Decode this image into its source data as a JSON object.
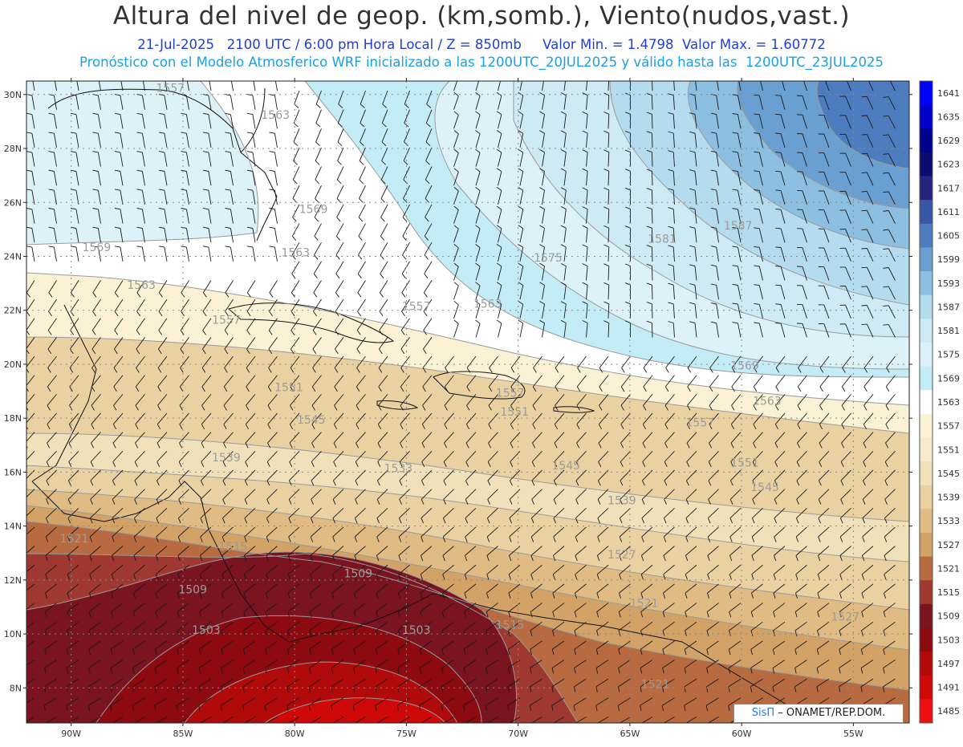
{
  "header": {
    "title": "Altura del nivel de geop. (km,somb.), Viento(nudos,vast.)",
    "line1_date": "21-Jul-2025",
    "line1_time": "2100 UTC / 6:00 pm Hora Local / Z = 850mb",
    "line1_min": "Valor Min. = 1.4798",
    "line1_max": "Valor Max. = 1.60772",
    "line2": "Pronóstico con el Modelo Atmosferico WRF inicializado a las 1200UTC_20JUL2025 y válido hasta las  1200UTC_23JUL2025"
  },
  "map": {
    "lat_labels": [
      "30N",
      "28N",
      "26N",
      "24N",
      "22N",
      "20N",
      "18N",
      "16N",
      "14N",
      "12N",
      "10N",
      "8N"
    ],
    "lat_values": [
      30,
      28,
      26,
      24,
      22,
      20,
      18,
      16,
      14,
      12,
      10,
      8
    ],
    "lon_labels": [
      "90W",
      "85W",
      "80W",
      "75W",
      "70W",
      "65W",
      "60W",
      "55W"
    ],
    "lon_values": [
      -90,
      -85,
      -80,
      -75,
      -70,
      -65,
      -60,
      -55
    ],
    "lon_range": [
      -92,
      -52.5
    ],
    "lat_range": [
      6.7,
      30.5
    ],
    "contour_labels": [
      {
        "text": "1557",
        "lon": -86.2,
        "lat": 30.1
      },
      {
        "text": "1563",
        "lon": -81.5,
        "lat": 29.1
      },
      {
        "text": "1569",
        "lon": -89.5,
        "lat": 24.2
      },
      {
        "text": "1569",
        "lon": -79.8,
        "lat": 25.6
      },
      {
        "text": "1563",
        "lon": -80.6,
        "lat": 24.0
      },
      {
        "text": "1563",
        "lon": -87.5,
        "lat": 22.8
      },
      {
        "text": "1557",
        "lon": -83.7,
        "lat": 21.5
      },
      {
        "text": "1557",
        "lon": -75.2,
        "lat": 22.0
      },
      {
        "text": "1563",
        "lon": -72.0,
        "lat": 22.1
      },
      {
        "text": "1575",
        "lon": -69.3,
        "lat": 23.8
      },
      {
        "text": "1581",
        "lon": -64.2,
        "lat": 24.5
      },
      {
        "text": "1587",
        "lon": -60.8,
        "lat": 25.0
      },
      {
        "text": "1569",
        "lon": -60.5,
        "lat": 19.8
      },
      {
        "text": "1563",
        "lon": -59.5,
        "lat": 18.5
      },
      {
        "text": "1551",
        "lon": -80.9,
        "lat": 19.0
      },
      {
        "text": "1557",
        "lon": -71.0,
        "lat": 18.8
      },
      {
        "text": "1551",
        "lon": -70.8,
        "lat": 18.1
      },
      {
        "text": "1545",
        "lon": -79.9,
        "lat": 17.8
      },
      {
        "text": "1539",
        "lon": -83.7,
        "lat": 16.4
      },
      {
        "text": "1533",
        "lon": -76.0,
        "lat": 16.0
      },
      {
        "text": "1545",
        "lon": -68.5,
        "lat": 16.1
      },
      {
        "text": "1557",
        "lon": -62.5,
        "lat": 17.7
      },
      {
        "text": "1551",
        "lon": -60.5,
        "lat": 16.2
      },
      {
        "text": "1545",
        "lon": -59.6,
        "lat": 15.3
      },
      {
        "text": "1539",
        "lon": -66.0,
        "lat": 14.8
      },
      {
        "text": "1521",
        "lon": -90.5,
        "lat": 13.4
      },
      {
        "text": "1515",
        "lon": -83.4,
        "lat": 13.1
      },
      {
        "text": "1509",
        "lon": -77.8,
        "lat": 12.1
      },
      {
        "text": "1509",
        "lon": -85.2,
        "lat": 11.5
      },
      {
        "text": "1527",
        "lon": -66.0,
        "lat": 12.8
      },
      {
        "text": "1515",
        "lon": -71.0,
        "lat": 10.2
      },
      {
        "text": "1503",
        "lon": -84.6,
        "lat": 10.0
      },
      {
        "text": "1503",
        "lon": -75.2,
        "lat": 10.0
      },
      {
        "text": "1521",
        "lon": -64.5,
        "lat": 8.0
      },
      {
        "text": "1521",
        "lon": -65.0,
        "lat": 11.0
      },
      {
        "text": "1527",
        "lon": -56.0,
        "lat": 10.5
      }
    ]
  },
  "colorbar": {
    "levels": [
      "1641",
      "1635",
      "1629",
      "1623",
      "1617",
      "1611",
      "1605",
      "1599",
      "1593",
      "1587",
      "1581",
      "1575",
      "1569",
      "1563",
      "1557",
      "1551",
      "1545",
      "1539",
      "1533",
      "1527",
      "1521",
      "1515",
      "1509",
      "1503",
      "1497",
      "1491",
      "1485"
    ],
    "colors": [
      "#0000ff",
      "#0000cd",
      "#00008b",
      "#0c0c70",
      "#252580",
      "#3a56a8",
      "#4d7dbe",
      "#6a9fd2",
      "#8cbfe0",
      "#b4dcee",
      "#cdeaf5",
      "#dcf1f8",
      "#c4ecf7",
      "#ffffff",
      "#fbf2d6",
      "#f6ebcb",
      "#f0e1bb",
      "#e9d1a2",
      "#e0bc84",
      "#d2a266",
      "#b86a40",
      "#9e3830",
      "#7a1420",
      "#8c0a10",
      "#b00a0a",
      "#cf0808",
      "#ee1010"
    ]
  },
  "credit": {
    "brand": "SisΠ",
    "rest": " – ONAMET/REP.DOM."
  }
}
